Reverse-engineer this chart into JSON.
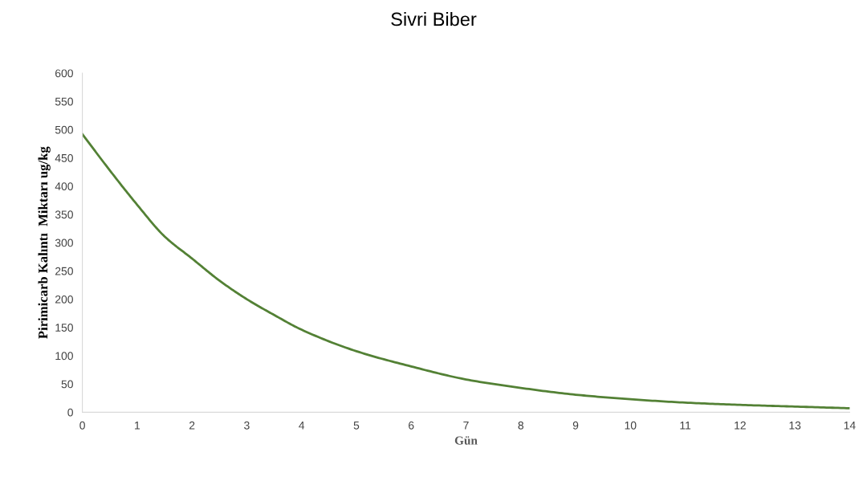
{
  "chart_data": {
    "type": "line",
    "title": "Sivri Biber",
    "xlabel": "Gün",
    "ylabel": "Pirimicarb Kalıntı  Miktarı ug/kg",
    "x": [
      0,
      0.5,
      1,
      1.5,
      2,
      2.5,
      3,
      3.5,
      4,
      5,
      6,
      7,
      8,
      9,
      10,
      11,
      12,
      13,
      14
    ],
    "series": [
      {
        "color": "#538135",
        "values": [
          492,
          428,
          367,
          311,
          272,
          233,
          200,
          172,
          146,
          108,
          81,
          58,
          43,
          31,
          23,
          17,
          13,
          10,
          7
        ]
      }
    ],
    "xlim": [
      0,
      14
    ],
    "xticks": [
      0,
      1,
      2,
      3,
      4,
      5,
      6,
      7,
      8,
      9,
      10,
      11,
      12,
      13,
      14
    ],
    "ylim": [
      0,
      600
    ],
    "yticks": [
      0,
      50,
      100,
      150,
      200,
      250,
      300,
      350,
      400,
      450,
      500,
      550,
      600
    ],
    "grid": false,
    "legend": false,
    "marker": "none",
    "line_style": "solid"
  }
}
